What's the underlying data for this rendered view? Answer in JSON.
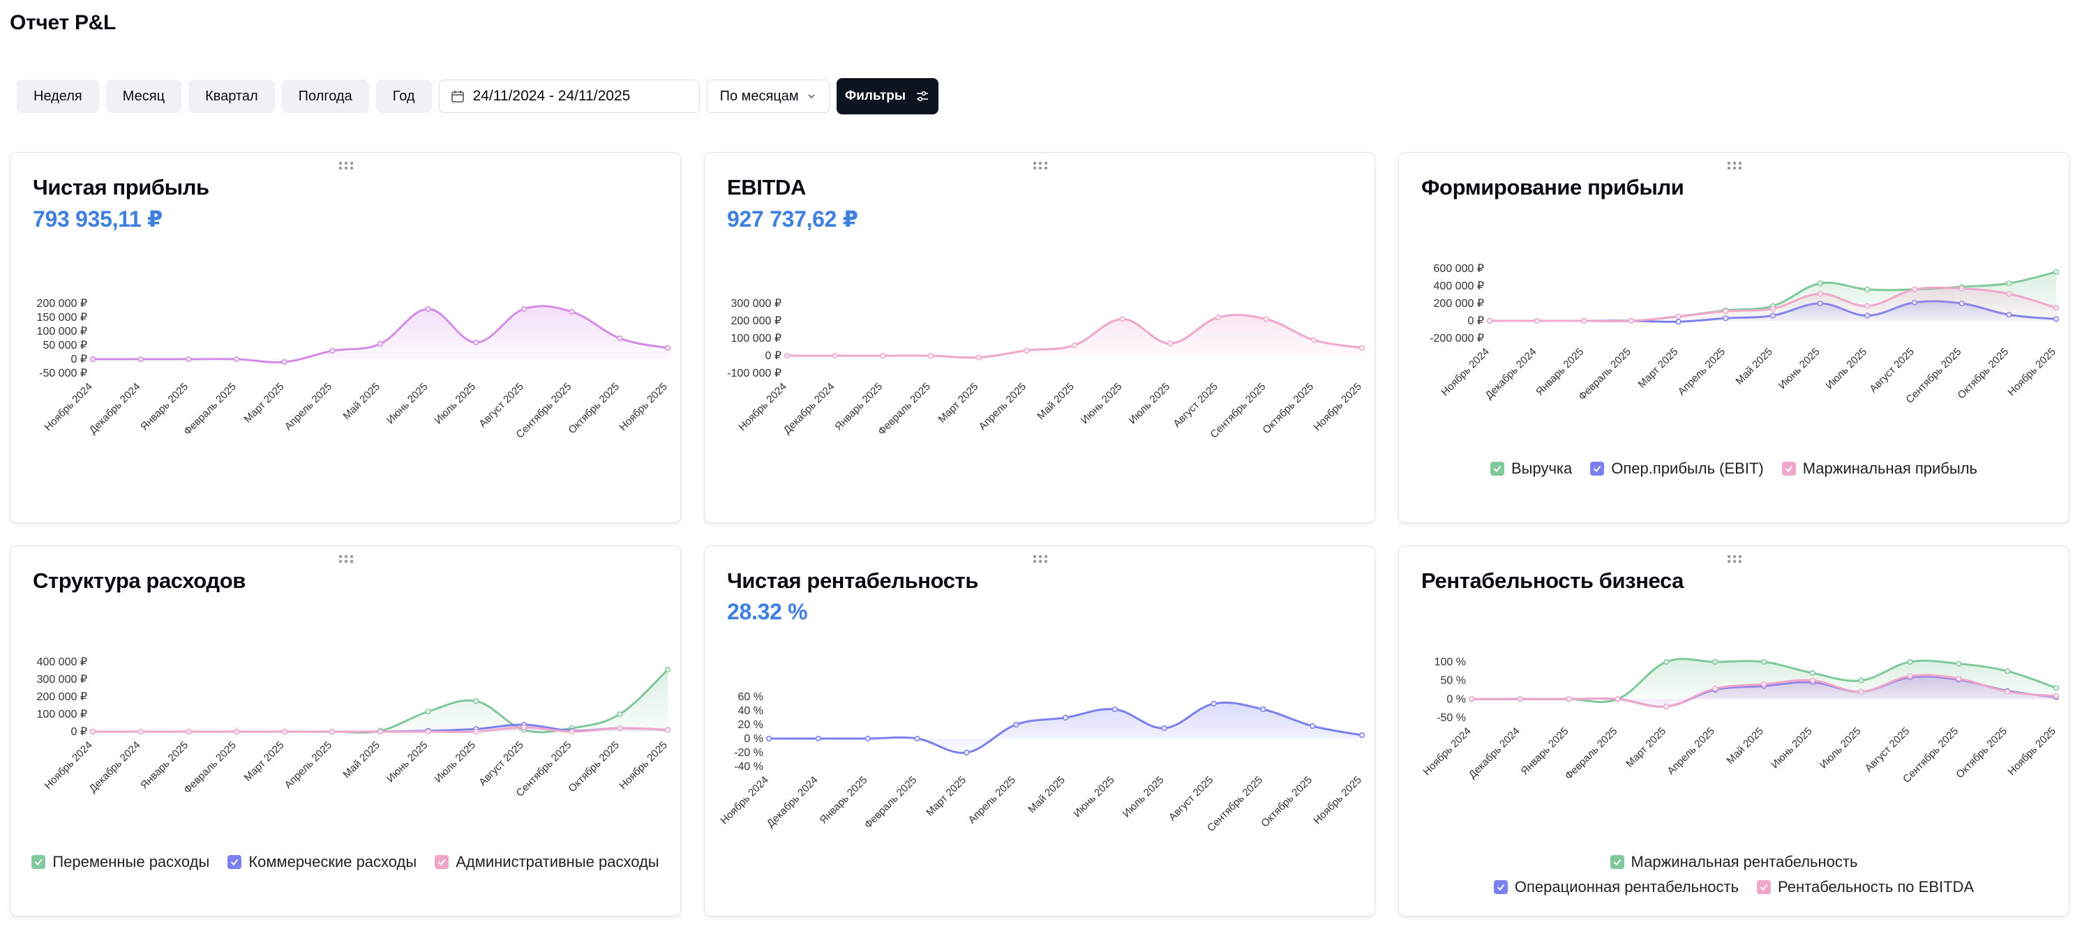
{
  "page": {
    "title": "Отчет P&L"
  },
  "toolbar": {
    "periods": [
      "Неделя",
      "Месяц",
      "Квартал",
      "Полгода",
      "Год"
    ],
    "date_range": "24/11/2024 - 24/11/2025",
    "group_by": "По месяцам",
    "filters_label": "Фильтры"
  },
  "colors": {
    "revenue": "#7fc99a",
    "ebit": "#7b80ef",
    "margin_profit": "#f0a6c8",
    "violet": "#d48be8",
    "pink": "#f0a6c8",
    "value": "#3f7fe0"
  },
  "months": [
    "Ноябрь 2024",
    "Декабрь 2024",
    "Январь 2025",
    "Февраль 2025",
    "Март 2025",
    "Апрель 2025",
    "Май 2025",
    "Июнь 2025",
    "Июль 2025",
    "Август 2025",
    "Сентябрь 2025",
    "Октябрь 2025",
    "Ноябрь 2025"
  ],
  "cards": [
    {
      "title": "Чистая прибыль",
      "value": "793 935,11 ₽",
      "chart_data": {
        "type": "area",
        "y_tick_labels": [
          "200 000 ₽",
          "150 000 ₽",
          "100 000 ₽",
          "50 000 ₽",
          "0 ₽",
          "-50 000 ₽"
        ],
        "ylim": [
          -50000,
          200000
        ],
        "grid": false,
        "series": [
          {
            "color": "#d48be8",
            "values": [
              0,
              0,
              0,
              0,
              -10000,
              30000,
              55000,
              180000,
              60000,
              180000,
              170000,
              75000,
              40000
            ]
          }
        ]
      }
    },
    {
      "title": "EBITDA",
      "value": "927 737,62 ₽",
      "chart_data": {
        "type": "area",
        "y_tick_labels": [
          "300 000 ₽",
          "200 000 ₽",
          "100 000 ₽",
          "0 ₽",
          "-100 000 ₽"
        ],
        "ylim": [
          -100000,
          300000
        ],
        "grid": false,
        "series": [
          {
            "color": "#f0a6c8",
            "values": [
              0,
              0,
              0,
              0,
              -10000,
              30000,
              60000,
              210000,
              70000,
              220000,
              210000,
              90000,
              45000
            ]
          }
        ]
      }
    },
    {
      "title": "Формирование прибыли",
      "value": "",
      "chart_data": {
        "type": "area",
        "y_tick_labels": [
          "600 000 ₽",
          "400 000 ₽",
          "200 000 ₽",
          "0 ₽",
          "-200 000 ₽"
        ],
        "ylim": [
          -200000,
          600000
        ],
        "grid": false,
        "legend": "bottom",
        "series": [
          {
            "name": "Выручка",
            "color": "#7fc99a",
            "values": [
              0,
              0,
              0,
              0,
              50000,
              120000,
              170000,
              430000,
              360000,
              360000,
              390000,
              430000,
              560000
            ]
          },
          {
            "name": "Опер.прибыль (EBIT)",
            "color": "#7b80ef",
            "values": [
              0,
              0,
              0,
              0,
              -10000,
              30000,
              60000,
              200000,
              60000,
              210000,
              200000,
              70000,
              20000
            ]
          },
          {
            "name": "Маржинальная прибыль",
            "color": "#f0a6c8",
            "values": [
              0,
              0,
              0,
              0,
              50000,
              110000,
              140000,
              310000,
              170000,
              360000,
              370000,
              310000,
              150000
            ]
          }
        ]
      }
    },
    {
      "title": "Структура расходов",
      "value": "",
      "chart_data": {
        "type": "area",
        "y_tick_labels": [
          "400 000 ₽",
          "300 000 ₽",
          "200 000 ₽",
          "100 000 ₽",
          "0 ₽"
        ],
        "ylim": [
          0,
          400000
        ],
        "grid": false,
        "legend": "bottom",
        "series": [
          {
            "name": "Переменные расходы",
            "color": "#7fc99a",
            "values": [
              0,
              0,
              0,
              0,
              0,
              0,
              5000,
              115000,
              175000,
              10000,
              20000,
              100000,
              355000
            ]
          },
          {
            "name": "Коммерческие расходы",
            "color": "#7b80ef",
            "values": [
              0,
              0,
              0,
              0,
              0,
              0,
              0,
              5000,
              15000,
              40000,
              5000,
              20000,
              10000
            ]
          },
          {
            "name": "Административные расходы",
            "color": "#f0a6c8",
            "values": [
              0,
              0,
              0,
              0,
              0,
              0,
              0,
              0,
              0,
              25000,
              0,
              20000,
              10000
            ]
          }
        ]
      }
    },
    {
      "title": "Чистая рентабельность",
      "value": "28.32 %",
      "chart_data": {
        "type": "area",
        "y_tick_labels": [
          "60 %",
          "40 %",
          "20 %",
          "0 %",
          "-20 %",
          "-40 %"
        ],
        "ylim": [
          -40,
          60
        ],
        "grid": false,
        "series": [
          {
            "color": "#7b80ef",
            "values": [
              0,
              0,
              0,
              0,
              -20,
              20,
              30,
              42,
              15,
              50,
              42,
              18,
              5
            ]
          }
        ]
      }
    },
    {
      "title": "Рентабельность бизнеса",
      "value": "",
      "chart_data": {
        "type": "area",
        "y_tick_labels": [
          "100 %",
          "50 %",
          "0 %",
          "-50 %"
        ],
        "ylim": [
          -50,
          100
        ],
        "grid": false,
        "legend": "bottom",
        "series": [
          {
            "name": "Маржинальная рентабельность",
            "color": "#7fc99a",
            "values": [
              0,
              0,
              0,
              0,
              100,
              100,
              100,
              70,
              50,
              100,
              95,
              75,
              30
            ]
          },
          {
            "name": "Операционная рентабельность",
            "color": "#7b80ef",
            "values": [
              0,
              0,
              0,
              0,
              -20,
              25,
              35,
              45,
              20,
              58,
              52,
              22,
              5
            ]
          },
          {
            "name": "Рентабельность по EBITDA",
            "color": "#f0a6c8",
            "values": [
              0,
              0,
              0,
              0,
              -20,
              28,
              40,
              50,
              20,
              62,
              55,
              20,
              8
            ]
          }
        ]
      }
    }
  ]
}
